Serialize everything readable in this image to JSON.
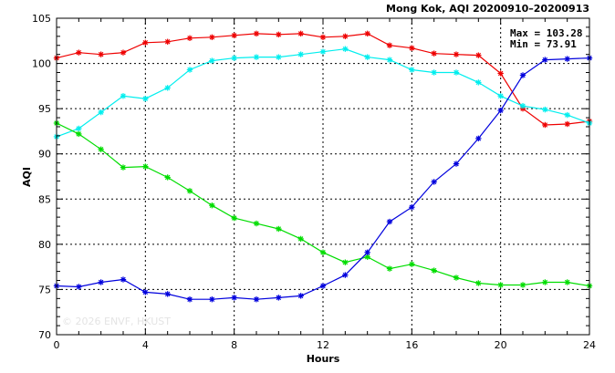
{
  "chart_data": {
    "type": "line",
    "title": "Mong Kok, AQI 20200910–20200913",
    "xlabel": "Hours",
    "ylabel": "AQI",
    "xlim": [
      0,
      24
    ],
    "ylim": [
      70,
      105
    ],
    "xticks": [
      0,
      4,
      8,
      12,
      16,
      20,
      24
    ],
    "yticks": [
      70,
      75,
      80,
      85,
      90,
      95,
      100,
      105
    ],
    "grid": true,
    "stats": {
      "max_label": "Max = 103.28",
      "min_label": "Min =  73.91"
    },
    "watermark": "© 2026  ENVF, HKUST",
    "x": [
      0,
      1,
      2,
      3,
      4,
      5,
      6,
      7,
      8,
      9,
      10,
      11,
      12,
      13,
      14,
      15,
      16,
      17,
      18,
      19,
      20,
      21,
      22,
      23,
      24
    ],
    "series": [
      {
        "color": "#ee0000",
        "values": [
          100.6,
          101.2,
          101.0,
          101.2,
          102.3,
          102.4,
          102.8,
          102.9,
          103.1,
          103.3,
          103.2,
          103.3,
          102.9,
          103.0,
          103.3,
          102.0,
          101.7,
          101.1,
          101.0,
          100.9,
          98.9,
          95.0,
          93.2,
          93.3,
          93.6
        ]
      },
      {
        "color": "#00eeee",
        "values": [
          91.9,
          92.8,
          94.6,
          96.4,
          96.1,
          97.3,
          99.3,
          100.3,
          100.6,
          100.7,
          100.7,
          101.0,
          101.3,
          101.6,
          100.7,
          100.4,
          99.3,
          99.0,
          99.0,
          97.9,
          96.4,
          95.3,
          94.9,
          94.3,
          93.4
        ]
      },
      {
        "color": "#00dd00",
        "values": [
          93.4,
          92.2,
          90.5,
          88.5,
          88.6,
          87.4,
          85.9,
          84.3,
          82.9,
          82.3,
          81.7,
          80.6,
          79.1,
          78.0,
          78.6,
          77.3,
          77.8,
          77.1,
          76.3,
          75.7,
          75.5,
          75.5,
          75.8,
          75.8,
          75.4
        ]
      },
      {
        "color": "#0000dd",
        "values": [
          75.4,
          75.3,
          75.8,
          76.1,
          74.7,
          74.5,
          73.91,
          73.91,
          74.1,
          73.91,
          74.1,
          74.3,
          75.4,
          76.6,
          79.1,
          82.5,
          84.1,
          86.9,
          88.9,
          91.7,
          94.8,
          98.7,
          100.4,
          100.5,
          100.6
        ]
      }
    ]
  }
}
